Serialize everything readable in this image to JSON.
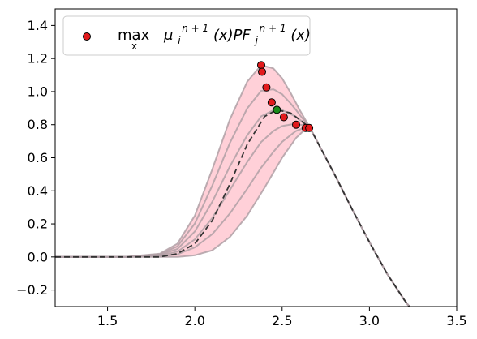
{
  "chart_data": {
    "type": "line",
    "title": "",
    "xlabel": "",
    "ylabel": "",
    "xlim": [
      1.2,
      3.5
    ],
    "ylim": [
      -0.3,
      1.5
    ],
    "xticks": [
      1.5,
      2.0,
      2.5,
      3.0,
      3.5
    ],
    "yticks": [
      -0.2,
      0.0,
      0.2,
      0.4,
      0.6,
      0.8,
      1.0,
      1.2,
      1.4
    ],
    "xtick_labels": [
      "1.5",
      "2.0",
      "2.5",
      "3.0",
      "3.5"
    ],
    "ytick_labels": [
      "−0.2",
      "0.0",
      "0.2",
      "0.4",
      "0.6",
      "0.8",
      "1.0",
      "1.2",
      "1.4"
    ],
    "grid": false,
    "legend_position": "upper-left",
    "legend": {
      "marker_color": "#e31a1c",
      "label_max": "max",
      "label_sub": "x",
      "label_mu": "μ",
      "label_mu_sub": "i",
      "label_mu_sup": "n + 1",
      "label_mid": "(x)PF",
      "label_f_sub": "j",
      "label_f_sup": "n + 1",
      "label_end": "(x)"
    },
    "band": {
      "fill_color": "#ffc0cb",
      "line_color": "#b0a0a6",
      "upper": {
        "x": [
          1.2,
          1.6,
          1.8,
          1.9,
          2.0,
          2.1,
          2.2,
          2.3,
          2.38,
          2.45,
          2.5,
          2.55,
          2.6,
          2.66,
          2.7,
          2.8,
          2.9,
          3.0,
          3.1,
          3.2,
          3.25
        ],
        "y": [
          0.0,
          0.0,
          0.02,
          0.08,
          0.25,
          0.53,
          0.83,
          1.06,
          1.16,
          1.14,
          1.08,
          0.99,
          0.89,
          0.78,
          0.7,
          0.5,
          0.29,
          0.09,
          -0.1,
          -0.26,
          -0.33
        ]
      },
      "lower": {
        "x": [
          1.2,
          1.8,
          1.9,
          2.0,
          2.1,
          2.2,
          2.3,
          2.4,
          2.5,
          2.58,
          2.63,
          2.66,
          2.7,
          2.8,
          2.9,
          3.0,
          3.1,
          3.2,
          3.25
        ],
        "y": [
          0.0,
          0.0,
          0.0,
          0.01,
          0.04,
          0.12,
          0.25,
          0.42,
          0.6,
          0.72,
          0.77,
          0.78,
          0.7,
          0.5,
          0.29,
          0.09,
          -0.1,
          -0.26,
          -0.33
        ]
      },
      "inner_curves": 4
    },
    "mean_curve": {
      "color": "#333333",
      "style": "dashed",
      "x": [
        1.2,
        1.7,
        1.8,
        1.9,
        2.0,
        2.1,
        2.2,
        2.3,
        2.4,
        2.47,
        2.55,
        2.6,
        2.66,
        2.7,
        2.8,
        2.9,
        3.0,
        3.1,
        3.2,
        3.25
      ],
      "y": [
        0.0,
        0.0,
        0.0,
        0.02,
        0.08,
        0.22,
        0.44,
        0.68,
        0.85,
        0.89,
        0.87,
        0.83,
        0.78,
        0.7,
        0.5,
        0.29,
        0.09,
        -0.1,
        -0.26,
        -0.33
      ]
    },
    "series": [
      {
        "marker_color": "#e31a1c",
        "points": [
          {
            "x": 2.38,
            "y": 1.16
          },
          {
            "x": 2.385,
            "y": 1.12
          },
          {
            "x": 2.41,
            "y": 1.025
          },
          {
            "x": 2.44,
            "y": 0.935
          },
          {
            "x": 2.51,
            "y": 0.845
          },
          {
            "x": 2.58,
            "y": 0.8
          },
          {
            "x": 2.635,
            "y": 0.78
          },
          {
            "x": 2.655,
            "y": 0.78
          }
        ]
      },
      {
        "marker_color": "#1a8a1a",
        "points": [
          {
            "x": 2.47,
            "y": 0.89
          }
        ]
      }
    ]
  }
}
